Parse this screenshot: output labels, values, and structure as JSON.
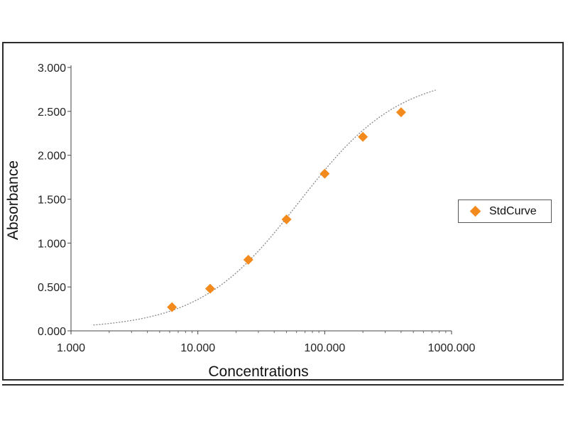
{
  "chart_data": {
    "type": "scatter",
    "title": "",
    "xlabel": "Concentrations",
    "ylabel": "Absorbance",
    "x_scale": "log",
    "xlim": [
      1,
      1000
    ],
    "ylim": [
      0,
      3
    ],
    "x_ticks": [
      1,
      10,
      100,
      1000
    ],
    "x_tick_labels": [
      "1.000",
      "10.000",
      "100.000",
      "1000.000"
    ],
    "y_ticks": [
      0,
      0.5,
      1,
      1.5,
      2,
      2.5,
      3
    ],
    "y_tick_labels": [
      "0.000",
      "0.500",
      "1.000",
      "1.500",
      "2.000",
      "2.500",
      "3.000"
    ],
    "grid": false,
    "legend_position": "right",
    "series": [
      {
        "name": "StdCurve",
        "color": "#F28A1E",
        "marker": "diamond",
        "x": [
          6.25,
          12.5,
          25,
          50,
          100,
          200,
          400
        ],
        "y": [
          0.27,
          0.48,
          0.81,
          1.27,
          1.79,
          2.21,
          2.49
        ]
      }
    ],
    "fit_curve": {
      "style": "dotted",
      "color": "#888888",
      "x_range": [
        1.5,
        750
      ],
      "model": "4PL",
      "bottom": 0.02,
      "top": 2.92,
      "ec50": 63,
      "hill": 1.1
    }
  }
}
